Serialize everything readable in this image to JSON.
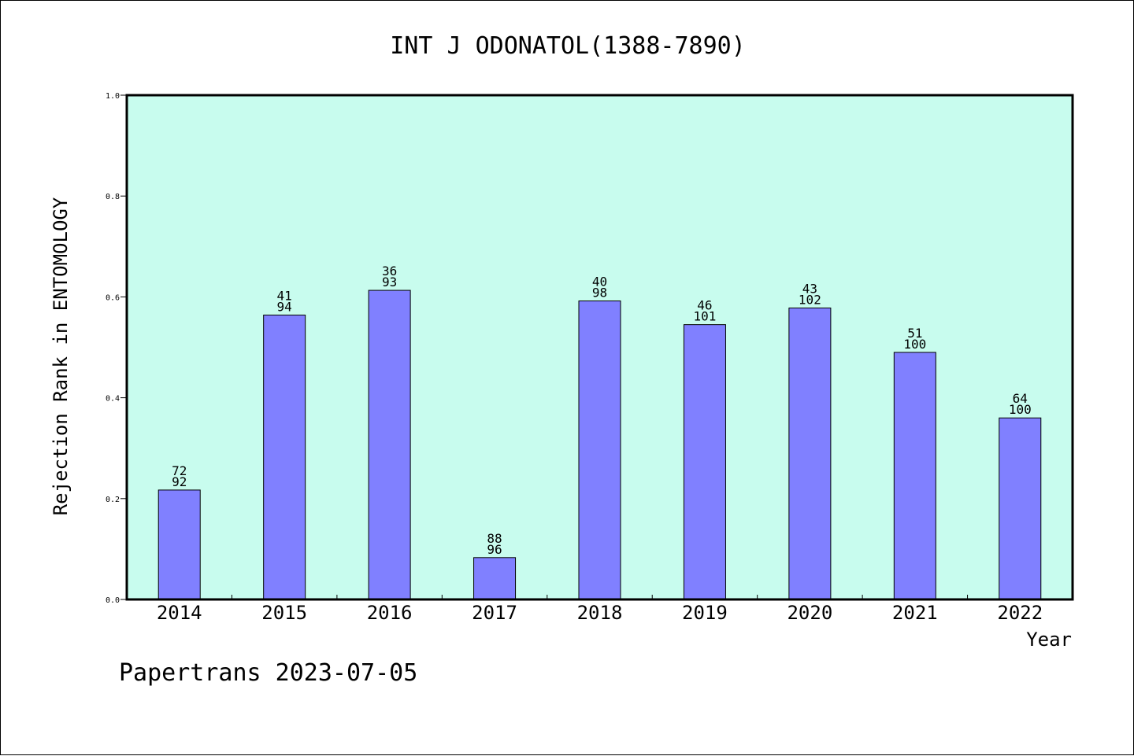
{
  "colors": {
    "plot_background": "#c8fcee",
    "bar_fill": "#8080ff",
    "bar_stroke": "#000000"
  },
  "footer": {
    "text": "Papertrans 2023-07-05"
  },
  "chart_data": {
    "type": "bar",
    "title": "INT J ODONATOL(1388-7890)",
    "xlabel": "Year",
    "ylabel": "Rejection Rank in ENTOMOLOGY",
    "ylim": [
      0,
      1.0
    ],
    "yticks": [
      "0.0",
      "0.2",
      "0.4",
      "0.6",
      "0.8",
      "1.0"
    ],
    "categories": [
      "2014",
      "2015",
      "2016",
      "2017",
      "2018",
      "2019",
      "2020",
      "2021",
      "2022"
    ],
    "values": [
      0.217,
      0.564,
      0.613,
      0.083,
      0.592,
      0.545,
      0.578,
      0.49,
      0.36
    ],
    "labels_top": [
      "72",
      "41",
      "36",
      "88",
      "40",
      "46",
      "43",
      "51",
      "64"
    ],
    "labels_bottom": [
      "92",
      "94",
      "93",
      "96",
      "98",
      "101",
      "102",
      "100",
      "100"
    ],
    "grid": false,
    "legend": "none"
  }
}
